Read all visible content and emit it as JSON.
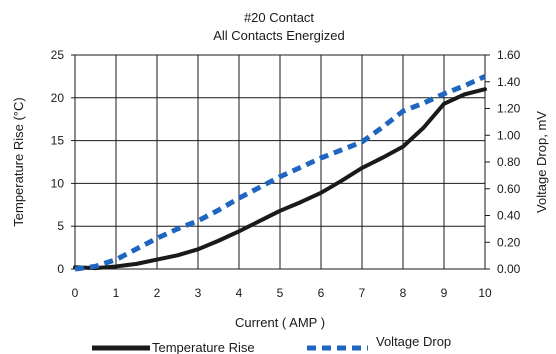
{
  "chart_data": {
    "type": "line",
    "title": "#20 Contact",
    "subtitle": "All Contacts Energized",
    "xlabel": "Current ( AMP )",
    "ylabel": "Temperature Rise  (°C)",
    "y2label": "Voltage Drop, mV",
    "xlim": [
      0,
      10
    ],
    "ylim": [
      0,
      25
    ],
    "y2lim": [
      0,
      1.6
    ],
    "x_ticks": [
      "0",
      "1",
      "2",
      "3",
      "4",
      "5",
      "6",
      "7",
      "8",
      "9",
      "10"
    ],
    "y_ticks": [
      "0",
      "5",
      "10",
      "15",
      "20",
      "25"
    ],
    "y2_ticks": [
      "0.00",
      "0.20",
      "0.40",
      "0.60",
      "0.80",
      "1.00",
      "1.20",
      "1.40",
      "1.60"
    ],
    "grid": true,
    "legend_position": "bottom",
    "series": [
      {
        "name": "Temperature Rise",
        "axis": "left",
        "style": "solid",
        "color": "#1a1a1a",
        "x": [
          0,
          0.5,
          1,
          1.5,
          2,
          2.5,
          3,
          3.5,
          4,
          4.5,
          5,
          5.5,
          6,
          6.5,
          7,
          7.5,
          8,
          8.5,
          9,
          9.5,
          10
        ],
        "y": [
          0.2,
          0.1,
          0.3,
          0.6,
          1.1,
          1.6,
          2.3,
          3.3,
          4.4,
          5.6,
          6.8,
          7.8,
          8.9,
          10.3,
          11.8,
          13.0,
          14.3,
          16.5,
          19.3,
          20.4,
          21.0
        ]
      },
      {
        "name": "Voltage Drop",
        "axis": "right",
        "style": "dashed",
        "color": "#1f66c1",
        "x": [
          0,
          0.5,
          1,
          1.5,
          2,
          2.5,
          3,
          3.5,
          4,
          4.5,
          5,
          5.5,
          6,
          6.5,
          7,
          7.5,
          8,
          8.5,
          9,
          9.5,
          10
        ],
        "y": [
          0.0,
          0.02,
          0.07,
          0.15,
          0.23,
          0.3,
          0.36,
          0.44,
          0.53,
          0.61,
          0.69,
          0.76,
          0.83,
          0.89,
          0.95,
          1.06,
          1.18,
          1.24,
          1.31,
          1.37,
          1.44
        ]
      }
    ]
  }
}
